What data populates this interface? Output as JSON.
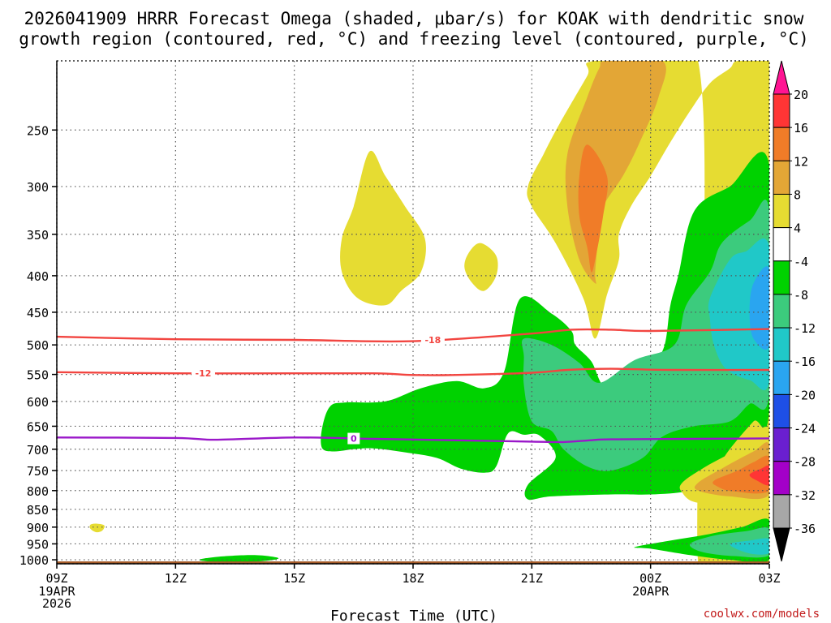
{
  "chart_data": {
    "type": "time-height contour",
    "title_line1": "2026041909 HRRR Forecast Omega (shaded, μbar/s) for KOAK with dendritic snow",
    "title_line2": "growth region (contoured, red, °C) and freezing level (contoured, purple, °C)",
    "xlabel": "Forecast Time (UTC)",
    "credit": "coolwx.com/models",
    "x_hours": [
      0,
      3,
      6,
      9,
      12,
      15,
      18
    ],
    "x_ticks": [
      "09Z",
      "12Z",
      "15Z",
      "18Z",
      "21Z",
      "00Z",
      "03Z"
    ],
    "x_sub_labels": [
      {
        "hour": 0,
        "lines": [
          "19APR",
          "2026"
        ]
      },
      {
        "hour": 15,
        "lines": [
          "20APR"
        ]
      }
    ],
    "y_axis": {
      "scale": "log-pressure",
      "unit": "hPa",
      "range": [
        1013,
        200
      ],
      "ticks": [
        250,
        300,
        350,
        400,
        450,
        500,
        550,
        600,
        650,
        700,
        750,
        800,
        850,
        900,
        950,
        1000
      ]
    },
    "colorbar": {
      "labels": [
        "20",
        "16",
        "12",
        "8",
        "4",
        "-4",
        "-8",
        "-12",
        "-16",
        "-20",
        "-24",
        "-28",
        "-32",
        "-36"
      ],
      "colors": [
        "#ff1493",
        "#ff3535",
        "#f07c28",
        "#e3a636",
        "#e6dc32",
        "#ffffff",
        "#00d200",
        "#3ccb7d",
        "#20c8c8",
        "#2aa5f0",
        "#1e4fe6",
        "#6a1fd0",
        "#a300c8",
        "#a7a7a7",
        "#000000"
      ]
    },
    "omega_regions": [
      {
        "name": "upper-yellow",
        "level": 4,
        "color": "#e6dc32",
        "points": [
          [
            16.2,
            1013
          ],
          [
            17.0,
            1013
          ],
          [
            18.0,
            1013
          ],
          [
            18.0,
            200
          ],
          [
            17.2,
            200
          ],
          [
            17.0,
            205
          ],
          [
            16.5,
            215
          ],
          [
            16.0,
            235
          ],
          [
            15.5,
            260
          ],
          [
            15.0,
            290
          ],
          [
            14.5,
            320
          ],
          [
            14.2,
            350
          ],
          [
            14.2,
            380
          ],
          [
            13.9,
            425
          ],
          [
            13.6,
            490
          ],
          [
            13.3,
            430
          ],
          [
            12.6,
            360
          ],
          [
            12.0,
            320
          ],
          [
            11.9,
            300
          ],
          [
            12.3,
            270
          ],
          [
            12.7,
            245
          ],
          [
            13.4,
            210
          ],
          [
            13.6,
            200
          ],
          [
            16.2,
            200
          ]
        ]
      },
      {
        "name": "upper-gold",
        "level": 8,
        "color": "#e3a636",
        "points": [
          [
            15.3,
            200
          ],
          [
            15.2,
            225
          ],
          [
            14.7,
            262
          ],
          [
            14.3,
            290
          ],
          [
            13.8,
            320
          ],
          [
            13.7,
            345
          ],
          [
            13.6,
            395
          ],
          [
            13.6,
            410
          ],
          [
            13.2,
            380
          ],
          [
            12.9,
            320
          ],
          [
            12.9,
            270
          ],
          [
            13.4,
            225
          ],
          [
            13.7,
            205
          ],
          [
            13.9,
            200
          ]
        ]
      },
      {
        "name": "upper-orange",
        "level": 12,
        "color": "#f07c28",
        "points": [
          [
            13.4,
            262
          ],
          [
            13.9,
            290
          ],
          [
            13.8,
            330
          ],
          [
            13.6,
            380
          ],
          [
            13.5,
            395
          ],
          [
            13.4,
            365
          ],
          [
            13.2,
            330
          ],
          [
            13.2,
            290
          ]
        ]
      },
      {
        "name": "cell-yellow-a",
        "level": 4,
        "color": "#e6dc32",
        "points": [
          [
            7.9,
            268
          ],
          [
            8.3,
            290
          ],
          [
            8.8,
            320
          ],
          [
            9.3,
            355
          ],
          [
            9.2,
            395
          ],
          [
            8.7,
            420
          ],
          [
            8.3,
            440
          ],
          [
            7.6,
            430
          ],
          [
            7.2,
            395
          ],
          [
            7.2,
            355
          ],
          [
            7.5,
            320
          ]
        ]
      },
      {
        "name": "cell-yellow-b",
        "level": 4,
        "color": "#e6dc32",
        "points": [
          [
            10.7,
            360
          ],
          [
            11.1,
            375
          ],
          [
            11.1,
            400
          ],
          [
            10.8,
            420
          ],
          [
            10.5,
            410
          ],
          [
            10.3,
            390
          ],
          [
            10.4,
            372
          ]
        ]
      },
      {
        "name": "cell-yellow-c",
        "level": 4,
        "color": "#e6dc32",
        "points": [
          [
            1.0,
            890
          ],
          [
            1.2,
            895
          ],
          [
            1.15,
            910
          ],
          [
            1.0,
            915
          ],
          [
            0.85,
            905
          ],
          [
            0.85,
            893
          ]
        ]
      },
      {
        "name": "main-green",
        "level": -4,
        "color": "#00d200",
        "points": [
          [
            11.7,
            431
          ],
          [
            12.5,
            452
          ],
          [
            13.0,
            478
          ],
          [
            13.1,
            500
          ],
          [
            13.5,
            527
          ],
          [
            13.9,
            575
          ],
          [
            14.7,
            538
          ],
          [
            15.3,
            510
          ],
          [
            15.5,
            440
          ],
          [
            15.7,
            400
          ],
          [
            16.1,
            325
          ],
          [
            17.0,
            300
          ],
          [
            18.0,
            280
          ],
          [
            18.0,
            612
          ],
          [
            17.6,
            640
          ],
          [
            17.0,
            700
          ],
          [
            16.4,
            780
          ],
          [
            15.9,
            802
          ],
          [
            15.0,
            810
          ],
          [
            14.0,
            810
          ],
          [
            12.5,
            815
          ],
          [
            11.9,
            823
          ],
          [
            11.9,
            785
          ],
          [
            12.6,
            720
          ],
          [
            12.2,
            670
          ],
          [
            11.8,
            668
          ],
          [
            11.4,
            665
          ],
          [
            11.1,
            740
          ],
          [
            10.8,
            755
          ],
          [
            10.2,
            745
          ],
          [
            9.6,
            720
          ],
          [
            8.8,
            707
          ],
          [
            8.0,
            698
          ],
          [
            7.5,
            700
          ],
          [
            7.0,
            705
          ],
          [
            6.7,
            697
          ],
          [
            6.7,
            655
          ],
          [
            6.9,
            610
          ],
          [
            7.3,
            602
          ],
          [
            8.3,
            600
          ],
          [
            9.2,
            575
          ],
          [
            10.1,
            562
          ],
          [
            10.8,
            575
          ],
          [
            11.3,
            545
          ]
        ]
      },
      {
        "name": "main-teal",
        "level": -8,
        "color": "#3ccb7d",
        "points": [
          [
            11.8,
            490
          ],
          [
            12.5,
            500
          ],
          [
            13.2,
            530
          ],
          [
            13.7,
            565
          ],
          [
            14.6,
            525
          ],
          [
            15.6,
            500
          ],
          [
            15.9,
            440
          ],
          [
            16.5,
            395
          ],
          [
            16.8,
            360
          ],
          [
            17.5,
            335
          ],
          [
            18.0,
            325
          ],
          [
            18.0,
            585
          ],
          [
            17.5,
            605
          ],
          [
            17.0,
            640
          ],
          [
            16.1,
            650
          ],
          [
            15.3,
            672
          ],
          [
            14.8,
            720
          ],
          [
            14.0,
            750
          ],
          [
            13.4,
            740
          ],
          [
            12.8,
            700
          ],
          [
            12.5,
            660
          ],
          [
            12.0,
            640
          ],
          [
            11.8,
            570
          ],
          [
            11.8,
            520
          ]
        ]
      },
      {
        "name": "main-cyan",
        "level": -12,
        "color": "#20c8c8",
        "points": [
          [
            16.5,
            430
          ],
          [
            17.0,
            380
          ],
          [
            17.4,
            370
          ],
          [
            18.0,
            365
          ],
          [
            18.0,
            560
          ],
          [
            17.5,
            560
          ],
          [
            16.9,
            540
          ],
          [
            16.6,
            500
          ],
          [
            16.5,
            460
          ]
        ]
      },
      {
        "name": "main-blue",
        "level": -16,
        "color": "#2aa5f0",
        "points": [
          [
            17.6,
            410
          ],
          [
            18.0,
            392
          ],
          [
            18.0,
            500
          ],
          [
            17.6,
            490
          ],
          [
            17.5,
            450
          ]
        ]
      },
      {
        "name": "low-green",
        "level": -4,
        "color": "#00d200",
        "points": [
          [
            14.6,
            960
          ],
          [
            15.5,
            940
          ],
          [
            16.5,
            920
          ],
          [
            17.3,
            900
          ],
          [
            18.0,
            880
          ],
          [
            18.0,
            1000
          ],
          [
            17.0,
            1000
          ],
          [
            16.0,
            985
          ],
          [
            15.0,
            965
          ]
        ]
      },
      {
        "name": "low-teal",
        "level": -8,
        "color": "#3ccb7d",
        "points": [
          [
            16.0,
            950
          ],
          [
            16.6,
            925
          ],
          [
            17.4,
            912
          ],
          [
            18.0,
            905
          ],
          [
            18.0,
            985
          ],
          [
            17.1,
            988
          ],
          [
            16.3,
            975
          ]
        ]
      },
      {
        "name": "low-cyan",
        "level": -12,
        "color": "#20c8c8",
        "points": [
          [
            17.0,
            952
          ],
          [
            17.5,
            940
          ],
          [
            18.0,
            935
          ],
          [
            18.0,
            978
          ],
          [
            17.5,
            980
          ]
        ]
      },
      {
        "name": "surface-green",
        "level": -4,
        "color": "#00d200",
        "points": [
          [
            3.6,
            1000
          ],
          [
            4.1,
            990
          ],
          [
            5.0,
            985
          ],
          [
            5.6,
            995
          ],
          [
            5.1,
            1005
          ],
          [
            4.0,
            1006
          ]
        ]
      },
      {
        "name": "low-yellow",
        "level": 4,
        "color": "#e6dc32",
        "points": [
          [
            15.8,
            780
          ],
          [
            16.4,
            740
          ],
          [
            17.2,
            700
          ],
          [
            18.0,
            655
          ],
          [
            18.0,
            830
          ],
          [
            17.5,
            835
          ],
          [
            16.2,
            832
          ],
          [
            15.8,
            805
          ]
        ]
      },
      {
        "name": "low-gold",
        "level": 8,
        "color": "#e3a636",
        "points": [
          [
            16.2,
            780
          ],
          [
            16.8,
            745
          ],
          [
            17.6,
            705
          ],
          [
            18.0,
            690
          ],
          [
            18.0,
            810
          ],
          [
            17.0,
            815
          ],
          [
            16.2,
            800
          ]
        ]
      },
      {
        "name": "low-orange",
        "level": 12,
        "color": "#f07c28",
        "points": [
          [
            16.6,
            775
          ],
          [
            17.2,
            750
          ],
          [
            17.6,
            730
          ],
          [
            18.0,
            718
          ],
          [
            18.0,
            800
          ],
          [
            17.1,
            802
          ],
          [
            16.7,
            790
          ]
        ]
      },
      {
        "name": "low-red",
        "level": 16,
        "color": "#ff3535",
        "points": [
          [
            17.5,
            760
          ],
          [
            17.8,
            745
          ],
          [
            18.0,
            740
          ],
          [
            18.0,
            785
          ],
          [
            17.7,
            775
          ]
        ]
      }
    ],
    "contours": [
      {
        "name": "dendritic-top",
        "temp_c": -18,
        "label": "-18",
        "label_hour": 9.5,
        "color": "#f24540",
        "points": [
          [
            0,
            487
          ],
          [
            3,
            491
          ],
          [
            6,
            492
          ],
          [
            9,
            494
          ],
          [
            12,
            482
          ],
          [
            13,
            476
          ],
          [
            14,
            476
          ],
          [
            15,
            478
          ],
          [
            18,
            475
          ]
        ]
      },
      {
        "name": "dendritic-bottom",
        "temp_c": -12,
        "label": "-12",
        "label_hour": 3.7,
        "color": "#f24540",
        "points": [
          [
            0,
            546
          ],
          [
            3,
            548
          ],
          [
            6,
            548
          ],
          [
            8,
            548
          ],
          [
            9,
            551
          ],
          [
            10,
            551
          ],
          [
            12,
            547
          ],
          [
            12.9,
            542
          ],
          [
            14,
            540
          ],
          [
            15.5,
            542
          ],
          [
            18,
            542
          ]
        ]
      },
      {
        "name": "freezing-level",
        "temp_c": 0,
        "label": "0",
        "label_hour": 7.5,
        "color": "#9a17c9",
        "points": [
          [
            0,
            674
          ],
          [
            3,
            675
          ],
          [
            4,
            679
          ],
          [
            6,
            674
          ],
          [
            8,
            677
          ],
          [
            10,
            680
          ],
          [
            12,
            683
          ],
          [
            12.8,
            684
          ],
          [
            13.5,
            680
          ],
          [
            14,
            678
          ],
          [
            16,
            677
          ],
          [
            18,
            676
          ]
        ]
      }
    ],
    "ground": {
      "top_hPa": 1013,
      "color": "#a45a28"
    }
  }
}
